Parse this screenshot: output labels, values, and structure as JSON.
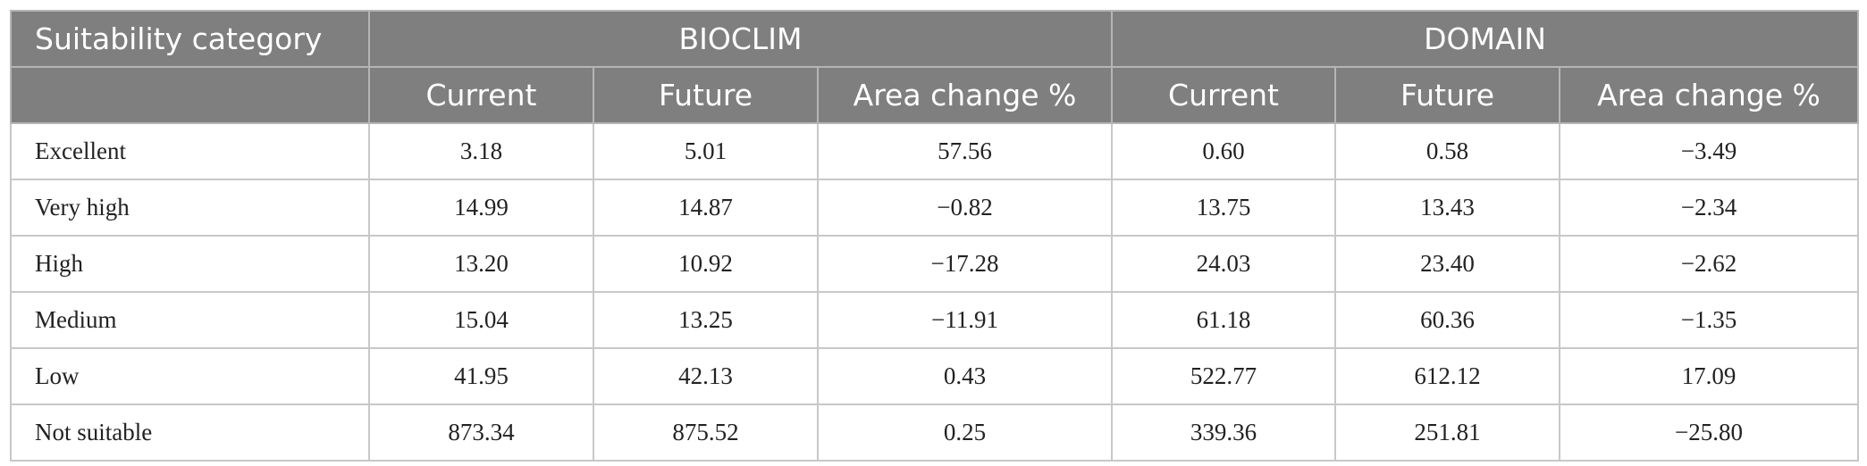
{
  "table": {
    "header": {
      "first_column": "Suitability category",
      "groups": [
        "BIOCLIM",
        "DOMAIN"
      ],
      "columns": [
        "Current",
        "Future",
        "Area change %",
        "Current",
        "Future",
        "Area change %"
      ]
    },
    "rows": [
      [
        "Excellent",
        "3.18",
        "5.01",
        "57.56",
        "0.60",
        "0.58",
        "−3.49"
      ],
      [
        "Very high",
        "14.99",
        "14.87",
        "−0.82",
        "13.75",
        "13.43",
        "−2.34"
      ],
      [
        "High",
        "13.20",
        "10.92",
        "−17.28",
        "24.03",
        "23.40",
        "−2.62"
      ],
      [
        "Medium",
        "15.04",
        "13.25",
        "−11.91",
        "61.18",
        "60.36",
        "−1.35"
      ],
      [
        "Low",
        "41.95",
        "42.13",
        "0.43",
        "522.77",
        "612.12",
        "17.09"
      ],
      [
        "Not suitable",
        "873.34",
        "875.52",
        "0.25",
        "339.36",
        "251.81",
        "−25.80"
      ]
    ]
  }
}
